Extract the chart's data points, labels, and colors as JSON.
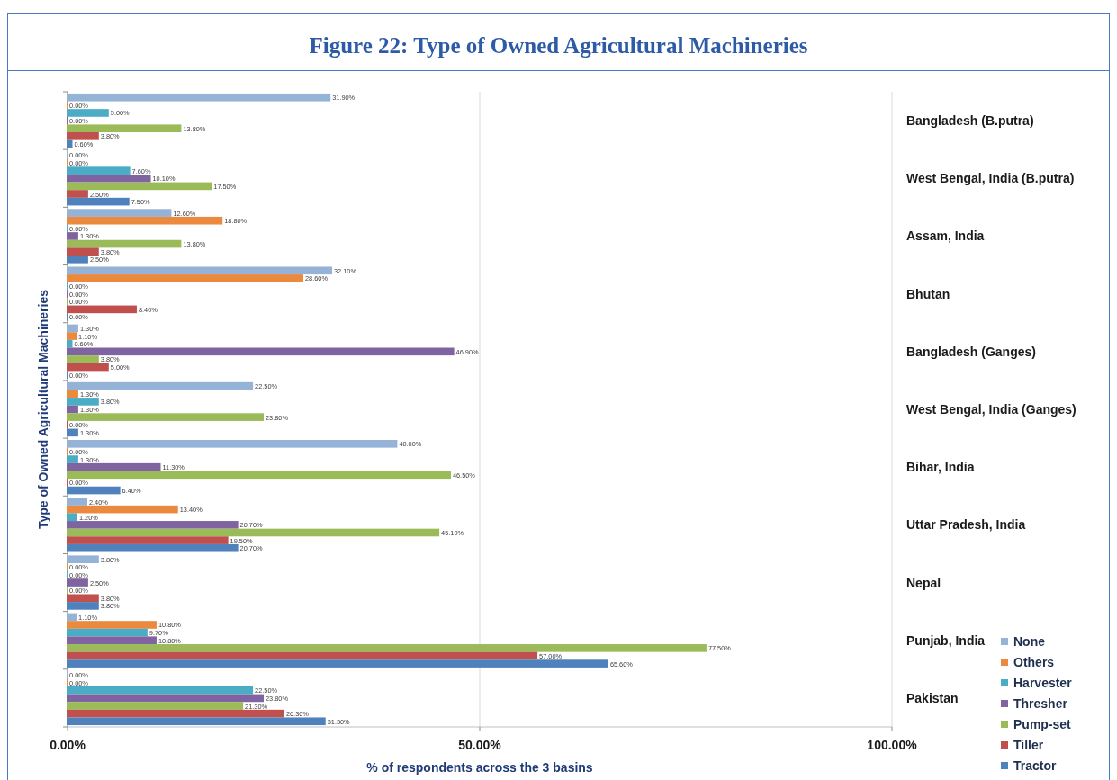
{
  "chart_data": {
    "type": "bar",
    "orientation": "horizontal",
    "title": "Figure 22: Type of Owned Agricultural Machineries",
    "xlabel": "% of respondents across the 3 basins",
    "ylabel": "Type of Owned Agricultural Machineries",
    "categories": [
      "Bangladesh (B.putra)",
      "West Bengal, India (B.putra)",
      "Assam, India",
      "Bhutan",
      "Bangladesh (Ganges)",
      "West Bengal, India (Ganges)",
      "Bihar, India",
      "Uttar Pradesh, India",
      "Nepal",
      "Punjab, India",
      "Pakistan"
    ],
    "series": [
      {
        "name": "None",
        "color": "#95b3d7",
        "values": [
          31.9,
          0,
          12.6,
          32.1,
          1.3,
          22.5,
          40.0,
          2.4,
          3.8,
          1.1,
          0
        ],
        "value_labels": [
          "31.90%",
          "0.00%",
          "12.60%",
          "32.10%",
          "1.30%",
          "22.50%",
          "40.00%",
          "2.40%",
          "3.80%",
          "1.10%",
          "0.00%"
        ]
      },
      {
        "name": "Others",
        "color": "#eb8a3f",
        "values": [
          0,
          0,
          18.8,
          28.6,
          1.1,
          1.3,
          0,
          13.4,
          0,
          10.8,
          0
        ],
        "value_labels": [
          "0.00%",
          "0.00%",
          "18.80%",
          "28.60%",
          "1.10%",
          "1.30%",
          "0.00%",
          "13.40%",
          "0.00%",
          "10.80%",
          "0.00%"
        ]
      },
      {
        "name": "Harvester",
        "color": "#4bacc6",
        "values": [
          5.0,
          7.6,
          0,
          0,
          0.6,
          3.8,
          1.3,
          1.2,
          0,
          9.7,
          22.5
        ],
        "value_labels": [
          "5.00%",
          "7.60%",
          "0.00%",
          "0.00%",
          "0.60%",
          "3.80%",
          "1.30%",
          "1.20%",
          "0.00%",
          "9.70%",
          "22.50%"
        ]
      },
      {
        "name": "Thresher",
        "color": "#8064a2",
        "values": [
          0,
          10.1,
          1.3,
          0,
          46.9,
          1.3,
          11.3,
          20.7,
          2.5,
          10.8,
          23.8
        ],
        "value_labels": [
          "0.00%",
          "10.10%",
          "1.30%",
          "0.00%",
          "46.90%",
          "1.30%",
          "11.30%",
          "20.70%",
          "2.50%",
          "10.80%",
          "23.80%"
        ]
      },
      {
        "name": "Pump-set",
        "color": "#9bbb59",
        "values": [
          13.8,
          17.5,
          13.8,
          0,
          3.8,
          23.8,
          46.5,
          45.1,
          0,
          77.5,
          21.3
        ],
        "value_labels": [
          "13.80%",
          "17.50%",
          "13.80%",
          "0.00%",
          "3.80%",
          "23.80%",
          "46.50%",
          "45.10%",
          "0.00%",
          "77.50%",
          "21.30%"
        ]
      },
      {
        "name": "Tiller",
        "color": "#c0504d",
        "values": [
          3.8,
          2.5,
          3.8,
          8.4,
          5.0,
          0,
          0,
          19.5,
          3.8,
          57.0,
          26.3
        ],
        "value_labels": [
          "3.80%",
          "2.50%",
          "3.80%",
          "8.40%",
          "5.00%",
          "0.00%",
          "0.00%",
          "19.50%",
          "3.80%",
          "57.00%",
          "26.30%"
        ]
      },
      {
        "name": "Tractor",
        "color": "#4f81bd",
        "values": [
          0.6,
          7.5,
          2.5,
          0,
          0,
          1.3,
          6.4,
          20.7,
          3.8,
          65.6,
          31.3
        ],
        "value_labels": [
          "0.60%",
          "7.50%",
          "2.50%",
          "0.00%",
          "0.00%",
          "1.30%",
          "6.40%",
          "20.70%",
          "3.80%",
          "65.60%",
          "31.30%"
        ]
      }
    ],
    "xlim": [
      0,
      100
    ],
    "xticks": [
      {
        "value": 0,
        "label": "0.00%"
      },
      {
        "value": 50,
        "label": "50.00%"
      },
      {
        "value": 100,
        "label": "100.00%"
      }
    ],
    "grid": "x",
    "legend": "bottom right"
  }
}
